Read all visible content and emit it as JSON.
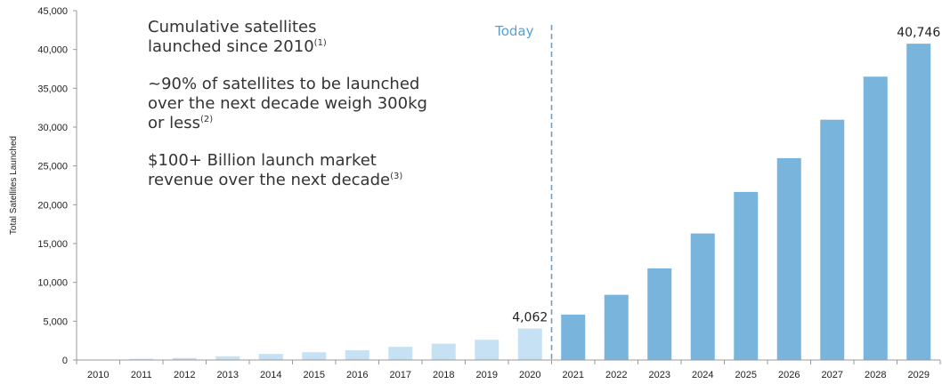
{
  "chart_data": {
    "type": "bar",
    "categories": [
      "2010",
      "2011",
      "2012",
      "2013",
      "2014",
      "2015",
      "2016",
      "2017",
      "2018",
      "2019",
      "2020",
      "2021",
      "2022",
      "2023",
      "2024",
      "2025",
      "2026",
      "2027",
      "2028",
      "2029"
    ],
    "values": [
      50,
      150,
      260,
      480,
      780,
      1000,
      1250,
      1700,
      2100,
      2600,
      4062,
      5850,
      8400,
      11800,
      16300,
      21650,
      26000,
      30950,
      36500,
      40746
    ],
    "historical_count": 11,
    "colors": {
      "historical": "#c6e1f3",
      "forecast": "#79b4dd",
      "today_line": "#5b9fcf"
    },
    "ylabel": "Total Satellites Launched",
    "ylim": [
      0,
      45000
    ],
    "yticks": [
      "0",
      "5,000",
      "10,000",
      "15,000",
      "20,000",
      "25,000",
      "30,000",
      "35,000",
      "40,000",
      "45,000"
    ],
    "grid": false,
    "data_labels": [
      {
        "category": "2020",
        "text": "4,062"
      },
      {
        "category": "2029",
        "text": "40,746"
      }
    ],
    "today_label": "Today",
    "annotation": {
      "line1": "Cumulative satellites",
      "line2": "launched since 2010",
      "sup1": "(1)",
      "para2": "~90% of satellites to be launched over the next decade weigh 300kg or less",
      "sup2": "(2)",
      "para3": "$100+ Billion launch market revenue over the next decade",
      "sup3": "(3)"
    }
  }
}
